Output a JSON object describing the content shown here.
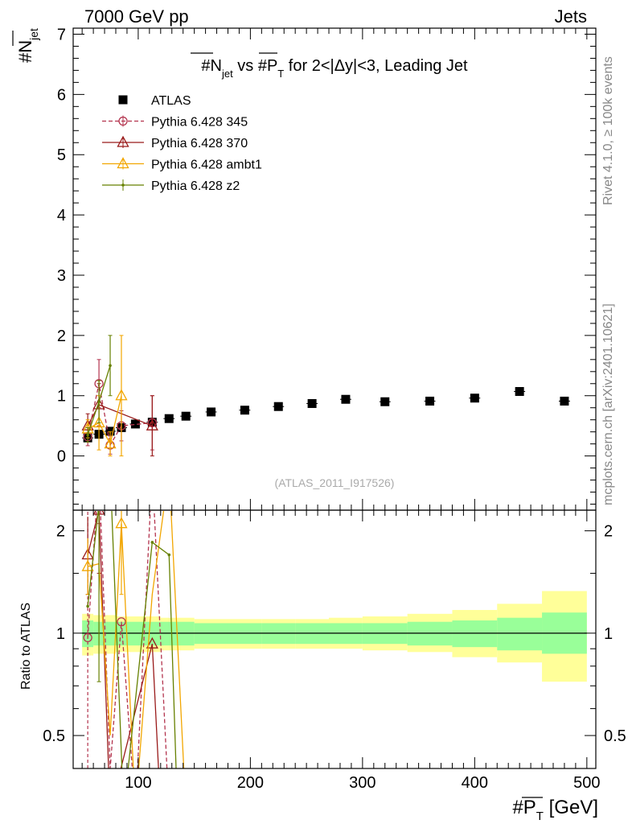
{
  "header": {
    "left": "7000 GeV pp",
    "right": "Jets"
  },
  "side": {
    "top": "Rivet 4.1.0, ≥ 100k events",
    "bottom": "mcplots.cern.ch [arXiv:2401.10621]"
  },
  "colors": {
    "atlas": "#000000",
    "p345": "#b3334d",
    "p370": "#991a1a",
    "ambt1": "#f2a600",
    "z2": "#668000",
    "band_stat": "#99ff99",
    "band_tot": "#ffff99"
  },
  "chart_data": [
    {
      "type": "scatter",
      "title": "#N_jet vs #P_T for 2<|Δy|<3, Leading Jet",
      "title_parts": {
        "n": "#N",
        "n_sub": "jet",
        "vs": " vs #P",
        "p_sub": "T",
        "rest": " for 2<|Δy|<3, Leading Jet"
      },
      "ylabel": "#N_jet",
      "ylabel_parts": {
        "main": "#N",
        "sub": "jet"
      },
      "ylim": [
        -0.9,
        7.1
      ],
      "yticks": [
        0,
        1,
        2,
        3,
        4,
        5,
        6,
        7
      ],
      "ytick_labels": [
        "0",
        "1",
        "2",
        "3",
        "4",
        "5",
        "6",
        "7"
      ],
      "xlim": [
        42,
        508
      ],
      "watermark": "(ATLAS_2011_I917526)",
      "legend_position": "top-left",
      "series": [
        {
          "name": "ATLAS",
          "marker": "square",
          "x": [
            55,
            65,
            75,
            85,
            97.5,
            112.5,
            127.5,
            142.5,
            165,
            195,
            225,
            255,
            285,
            320,
            360,
            400,
            440,
            480
          ],
          "y": [
            0.3,
            0.36,
            0.41,
            0.47,
            0.53,
            0.56,
            0.62,
            0.66,
            0.73,
            0.76,
            0.82,
            0.87,
            0.94,
            0.9,
            0.91,
            0.96,
            1.07,
            0.91
          ],
          "err": [
            0.03,
            0.03,
            0.03,
            0.03,
            0.03,
            0.03,
            0.03,
            0.03,
            0.03,
            0.03,
            0.03,
            0.03,
            0.03,
            0.03,
            0.03,
            0.03,
            0.03,
            0.03
          ]
        },
        {
          "name": "Pythia 6.428 345",
          "marker": "open-circle",
          "dashed": true,
          "x": [
            55,
            65,
            75,
            85,
            112.5
          ],
          "y": [
            0.32,
            1.2,
            0.18,
            0.5,
            0.55
          ],
          "err": [
            0.15,
            0.4,
            0.15,
            0.25,
            0.45
          ]
        },
        {
          "name": "Pythia 6.428 370",
          "marker": "open-triangle",
          "dashed": false,
          "x": [
            55,
            65,
            112.5
          ],
          "y": [
            0.5,
            0.85,
            0.5
          ],
          "err": [
            0.2,
            0.35,
            0.5
          ]
        },
        {
          "name": "Pythia 6.428 ambt1",
          "marker": "open-triangle",
          "dashed": false,
          "x": [
            55,
            65,
            75,
            85
          ],
          "y": [
            0.45,
            0.55,
            0.2,
            1.0
          ],
          "err": [
            0.15,
            0.45,
            0.2,
            1.0
          ]
        },
        {
          "name": "Pythia 6.428 z2",
          "marker": "dot",
          "dashed": false,
          "x": [
            55,
            65,
            75
          ],
          "y": [
            0.35,
            0.9,
            1.5
          ],
          "err": [
            0.12,
            0.35,
            0.5
          ]
        }
      ]
    },
    {
      "type": "line",
      "title": "",
      "xlabel": "#P_T [GeV]",
      "xlabel_parts": {
        "main": "#P",
        "sub": "T",
        "unit": " [GeV]"
      },
      "ylabel": "Ratio to ATLAS",
      "ylim_log": [
        0.4,
        2.3
      ],
      "yticks": [
        0.5,
        1,
        2
      ],
      "ytick_labels": [
        "0.5",
        "1",
        "2"
      ],
      "xlim": [
        42,
        508
      ],
      "xticks": [
        100,
        200,
        300,
        400,
        500
      ],
      "xtick_labels": [
        "100",
        "200",
        "300",
        "400",
        "500"
      ],
      "bands": {
        "x_edges": [
          50,
          60,
          70,
          80,
          90,
          105,
          120,
          135,
          150,
          180,
          210,
          240,
          270,
          300,
          340,
          380,
          420,
          460,
          500
        ],
        "stat_lo": [
          0.91,
          0.92,
          0.92,
          0.92,
          0.92,
          0.92,
          0.92,
          0.92,
          0.93,
          0.93,
          0.93,
          0.93,
          0.93,
          0.93,
          0.92,
          0.91,
          0.89,
          0.87
        ],
        "stat_hi": [
          1.09,
          1.08,
          1.08,
          1.08,
          1.08,
          1.08,
          1.08,
          1.08,
          1.07,
          1.07,
          1.07,
          1.07,
          1.07,
          1.07,
          1.08,
          1.09,
          1.11,
          1.15
        ],
        "tot_lo": [
          0.86,
          0.87,
          0.87,
          0.88,
          0.88,
          0.88,
          0.89,
          0.89,
          0.9,
          0.9,
          0.9,
          0.9,
          0.9,
          0.89,
          0.88,
          0.85,
          0.82,
          0.72
        ],
        "tot_hi": [
          1.14,
          1.13,
          1.13,
          1.12,
          1.12,
          1.12,
          1.11,
          1.11,
          1.1,
          1.1,
          1.1,
          1.1,
          1.11,
          1.12,
          1.14,
          1.17,
          1.22,
          1.33
        ]
      },
      "series": [
        {
          "name": "Pythia 6.428 345",
          "dashed": true,
          "points": [
            [
              55,
              0.97
            ],
            [
              65,
              3.0
            ],
            [
              75,
              0.4
            ],
            [
              85,
              1.08
            ],
            [
              97.5,
              0.3
            ],
            [
              112.5,
              3.0
            ],
            [
              127.5,
              0.3
            ]
          ],
          "markers": [
            [
              55,
              0.97
            ],
            [
              85,
              1.08
            ]
          ],
          "err": [
            [
              55,
              0.4,
              2.6
            ],
            [
              65,
              2.1,
              3.0
            ]
          ]
        },
        {
          "name": "Pythia 6.428 370",
          "dashed": false,
          "points": [
            [
              55,
              1.7
            ],
            [
              65,
              2.3
            ],
            [
              75,
              0.3
            ],
            [
              112.5,
              0.93
            ],
            [
              120,
              0.3
            ]
          ],
          "markers": [
            [
              55,
              1.7
            ],
            [
              65,
              2.3
            ],
            [
              112.5,
              0.93
            ]
          ],
          "err": [
            [
              55,
              1.3,
              2.2
            ],
            [
              65,
              1.5,
              3.0
            ]
          ]
        },
        {
          "name": "Pythia 6.428 ambt1",
          "dashed": false,
          "points": [
            [
              55,
              1.57
            ],
            [
              65,
              1.6
            ],
            [
              75,
              0.5
            ],
            [
              85,
              2.1
            ],
            [
              97.5,
              0.3
            ],
            [
              112.5,
              1.3
            ],
            [
              127.5,
              3.0
            ],
            [
              142.5,
              0.3
            ]
          ],
          "markers": [
            [
              55,
              1.57
            ],
            [
              85,
              2.1
            ]
          ],
          "err": [
            [
              55,
              1.3,
              1.9
            ],
            [
              85,
              1.3,
              3.0
            ]
          ]
        },
        {
          "name": "Pythia 6.428 z2",
          "dashed": false,
          "points": [
            [
              55,
              1.2
            ],
            [
              65,
              2.4
            ],
            [
              75,
              3.0
            ],
            [
              87,
              0.3
            ],
            [
              112.5,
              1.85
            ],
            [
              127.5,
              1.7
            ],
            [
              135,
              0.3
            ]
          ],
          "markers": [
            [
              55,
              1.2
            ],
            [
              112.5,
              1.85
            ],
            [
              127.5,
              1.7
            ]
          ],
          "err": [
            [
              65,
              0.72,
              3.0
            ]
          ]
        }
      ]
    }
  ]
}
